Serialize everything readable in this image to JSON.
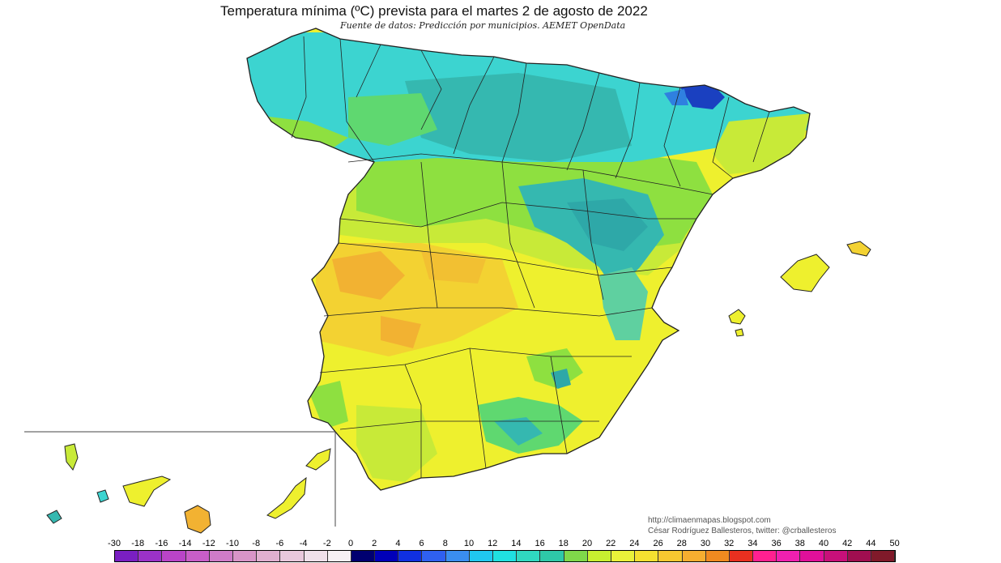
{
  "header": {
    "title": "Temperatura mínima (ºC) prevista para el martes 2 de agosto de 2022",
    "source": "Fuente de datos: Predicción por municipios. AEMET OpenData"
  },
  "credits": {
    "website": "http://climaenmapas.blogspot.com",
    "author": "César Rodríguez Ballesteros, twitter: @crballesteros"
  },
  "legend": {
    "labels": [
      "-30",
      "-18",
      "-16",
      "-14",
      "-12",
      "-10",
      "-8",
      "-6",
      "-4",
      "-2",
      "0",
      "2",
      "4",
      "6",
      "8",
      "10",
      "12",
      "14",
      "16",
      "18",
      "20",
      "22",
      "24",
      "26",
      "28",
      "30",
      "32",
      "34",
      "36",
      "38",
      "40",
      "42",
      "44",
      "50"
    ],
    "colors": [
      "#7a1fc2",
      "#9b32c8",
      "#b944c8",
      "#c85ec8",
      "#cf7cc8",
      "#d895c8",
      "#e0b0d0",
      "#e8c8dc",
      "#efe0ea",
      "#f6f0f4",
      "#000070",
      "#0000b8",
      "#1030e0",
      "#2f60f0",
      "#3a8ef0",
      "#20c8f0",
      "#20e0e0",
      "#30d8c0",
      "#2ec8a8",
      "#7fd84a",
      "#c8f030",
      "#eaf23a",
      "#f5e030",
      "#f7c830",
      "#f6ae30",
      "#f08a20",
      "#e83020",
      "#ff2090",
      "#f020b0",
      "#e0109a",
      "#c8107a",
      "#a00e50",
      "#801a2a"
    ]
  },
  "map": {
    "palette": {
      "cool": "#2ec8c0",
      "cyan": "#3cd4d0",
      "teal": "#35b8b0",
      "green_cool": "#5fd870",
      "green": "#8ee040",
      "yellow_green": "#c8ea38",
      "yellow": "#eef02e",
      "warm": "#f3d232",
      "orange": "#f2b232",
      "dark_blue": "#1a40c0",
      "border": "#222222"
    },
    "regions": [
      "peninsula",
      "mallorca",
      "menorca",
      "ibiza",
      "formentera",
      "la-palma",
      "el-hierro",
      "la-gomera",
      "tenerife",
      "gran-canaria",
      "fuerteventura",
      "lanzarote"
    ]
  }
}
